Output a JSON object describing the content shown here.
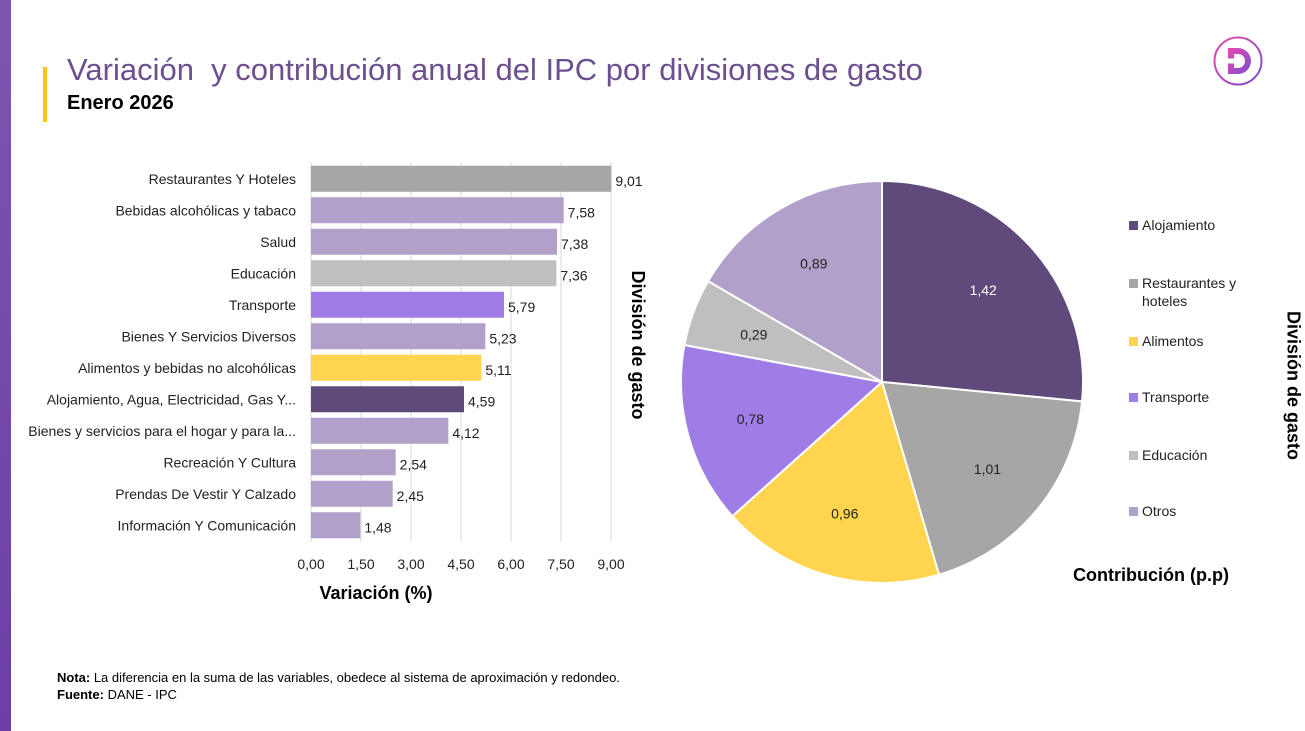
{
  "header": {
    "title": "Variación  y contribución anual del IPC por divisiones de gasto",
    "subtitle": "Enero 2026",
    "logo_letter": "D"
  },
  "colors": {
    "brand_purple": "#6b4f8f",
    "accent_yellow": "#f5c518"
  },
  "chart_data": [
    {
      "type": "bar",
      "orientation": "horizontal",
      "xlabel": "Variación (%)",
      "ylabel": "División de gasto",
      "xlim": [
        0,
        9
      ],
      "xticks": [
        "0,00",
        "1,50",
        "3,00",
        "4,50",
        "6,00",
        "7,50",
        "9,00"
      ],
      "grid": "vertical",
      "categories": [
        "Restaurantes Y Hoteles",
        "Bebidas alcohólicas y tabaco",
        "Salud",
        "Educación",
        "Transporte",
        "Bienes Y Servicios Diversos",
        "Alimentos y bebidas no alcohólicas",
        "Alojamiento, Agua, Electricidad, Gas Y...",
        "Bienes y servicios para el hogar y para la...",
        "Recreación Y Cultura",
        "Prendas De Vestir Y Calzado",
        "Información Y Comunicación"
      ],
      "values": [
        9.01,
        7.58,
        7.38,
        7.36,
        5.79,
        5.23,
        5.11,
        4.59,
        4.12,
        2.54,
        2.45,
        1.48
      ],
      "value_labels": [
        "9,01",
        "7,58",
        "7,38",
        "7,36",
        "5,79",
        "5,23",
        "5,11",
        "4,59",
        "4,12",
        "2,54",
        "2,45",
        "1,48"
      ],
      "bar_colors": [
        "#a6a6a6",
        "#b1a0c9",
        "#b1a0c9",
        "#bfbfbf",
        "#a07de6",
        "#b1a0c9",
        "#ffd54f",
        "#604a7b",
        "#b1a0c9",
        "#b1a0c9",
        "#b1a0c9",
        "#b1a0c9"
      ]
    },
    {
      "type": "pie",
      "xlabel": "Contribución (p.p)",
      "ylabel": "División de gasto",
      "legend_position": "right",
      "slices": [
        {
          "name": "Alojamiento",
          "value": 1.42,
          "label": "1,42",
          "color": "#604a7b"
        },
        {
          "name": "Restaurantes y hoteles",
          "value": 1.01,
          "label": "1,01",
          "color": "#a6a6a6"
        },
        {
          "name": "Alimentos",
          "value": 0.96,
          "label": "0,96",
          "color": "#ffd54f"
        },
        {
          "name": "Transporte",
          "value": 0.78,
          "label": "0,78",
          "color": "#a07de6"
        },
        {
          "name": "Educación",
          "value": 0.29,
          "label": "0,29",
          "color": "#bfbfbf"
        },
        {
          "name": "Otros",
          "value": 0.89,
          "label": "0,89",
          "color": "#b1a0c9"
        }
      ]
    }
  ],
  "notes": {
    "nota_label": "Nota:",
    "nota_text": " La diferencia en la suma de las variables, obedece al sistema de aproximación y redondeo.",
    "fuente_label": "Fuente:",
    "fuente_text": " DANE - IPC"
  }
}
